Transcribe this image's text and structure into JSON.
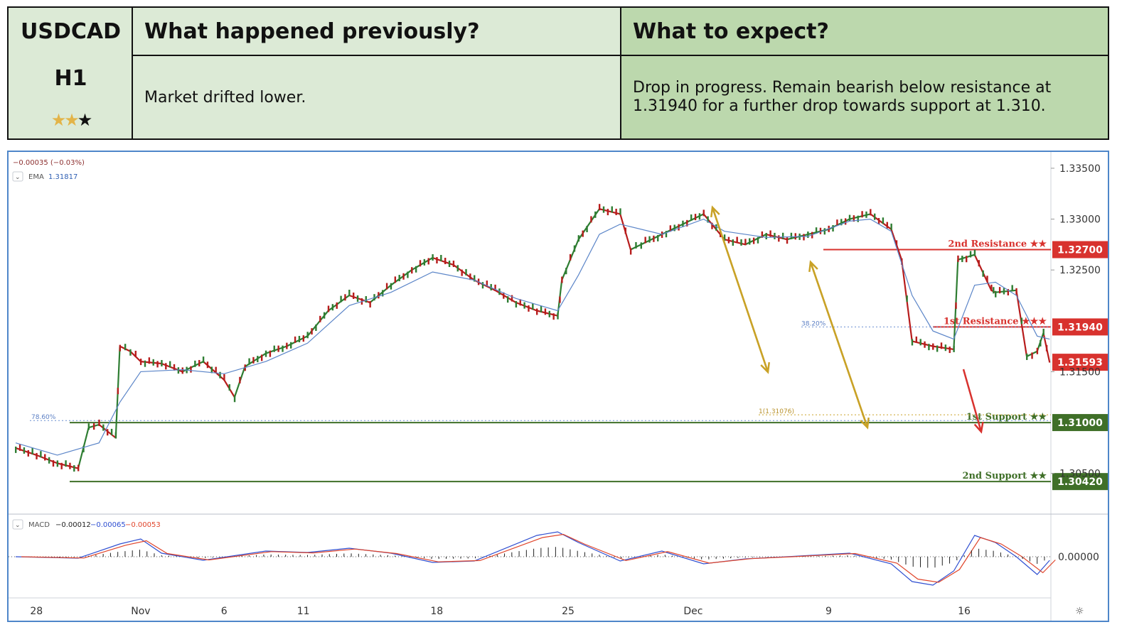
{
  "header": {
    "symbol": "USDCAD",
    "timeframe": "H1",
    "stars_filled": 2,
    "stars_total": 3,
    "prev_title": "What happened previously?",
    "prev_text": "Market drifted lower.",
    "exp_title": "What to expect?",
    "exp_text_line1": "Drop in progress. Remain bearish below resistance at",
    "exp_text_line2": "1.31940 for a further drop towards support at 1.310."
  },
  "colors": {
    "resistance": "#d8322e",
    "support": "#3f6f28",
    "ema": "#5b85c8",
    "candle_up": "#2e7d32",
    "candle_down": "#b71c1c",
    "arrow_gold": "#c9a227",
    "macd_line": "#2f4fd1",
    "signal_line": "#e0452b",
    "frame": "#4e86c9"
  },
  "chart_data": {
    "type": "line",
    "title": "",
    "change_readout": "−0.00035 (−0.03%)",
    "ema_label": "EMA",
    "ema_value": "1.31817",
    "y_ticks": [
      "1.33500",
      "1.33000",
      "1.32500",
      "1.31500",
      "1.30500"
    ],
    "x_ticks": [
      "28",
      "Nov",
      "6",
      "11",
      "18",
      "25",
      "Dec",
      "9",
      "16"
    ],
    "ylim": [
      1.301,
      1.3366
    ],
    "x_range_days": [
      0,
      50
    ],
    "current_price": "1.31593",
    "levels": [
      {
        "label": "2nd Resistance ★★",
        "price": 1.327,
        "tag": "1.32700",
        "kind": "resistance"
      },
      {
        "label": "1st Resistance ★★★",
        "price": 1.3194,
        "tag": "1.31940",
        "kind": "resistance"
      },
      {
        "label": "1st Support ★★",
        "price": 1.31,
        "tag": "1.31000",
        "kind": "support"
      },
      {
        "label": "2nd Support ★★",
        "price": 1.3042,
        "tag": "1.30420",
        "kind": "support"
      }
    ],
    "fib_labels": {
      "f786": "78.60%",
      "f382": "38.20%",
      "f1": "1(1.31076)"
    },
    "price_series": {
      "x": [
        0,
        1,
        2,
        3,
        4,
        5,
        6,
        7,
        8,
        9,
        10,
        11,
        12,
        13,
        14,
        15,
        16,
        17,
        18,
        19,
        20,
        21,
        22,
        23,
        24,
        25,
        26,
        27,
        28,
        29,
        30,
        31,
        32,
        33,
        34,
        35,
        36,
        37,
        38,
        39,
        40,
        41,
        42,
        43,
        44,
        45,
        46,
        47,
        48,
        49,
        50
      ],
      "y": []
    },
    "price_path": [
      [
        0,
        1.3075
      ],
      [
        1,
        1.3068
      ],
      [
        2,
        1.306
      ],
      [
        3,
        1.3055
      ],
      [
        3.5,
        1.3095
      ],
      [
        4,
        1.3098
      ],
      [
        4.8,
        1.3085
      ],
      [
        5.0,
        1.3175
      ],
      [
        5.5,
        1.317
      ],
      [
        6,
        1.316
      ],
      [
        7,
        1.3158
      ],
      [
        8,
        1.315
      ],
      [
        9,
        1.316
      ],
      [
        10,
        1.3142
      ],
      [
        10.5,
        1.3125
      ],
      [
        11,
        1.3155
      ],
      [
        12,
        1.3168
      ],
      [
        13,
        1.3175
      ],
      [
        14,
        1.3185
      ],
      [
        15,
        1.321
      ],
      [
        16,
        1.3225
      ],
      [
        17,
        1.3218
      ],
      [
        18,
        1.3235
      ],
      [
        19,
        1.325
      ],
      [
        20,
        1.3262
      ],
      [
        21,
        1.3255
      ],
      [
        22,
        1.324
      ],
      [
        23,
        1.323
      ],
      [
        24,
        1.3218
      ],
      [
        25,
        1.321
      ],
      [
        26,
        1.3205
      ],
      [
        26.2,
        1.324
      ],
      [
        27,
        1.328
      ],
      [
        28,
        1.331
      ],
      [
        29,
        1.3305
      ],
      [
        29.5,
        1.327
      ],
      [
        30,
        1.3275
      ],
      [
        31,
        1.3285
      ],
      [
        32,
        1.3295
      ],
      [
        33,
        1.3305
      ],
      [
        34,
        1.328
      ],
      [
        35,
        1.3275
      ],
      [
        36,
        1.3285
      ],
      [
        37,
        1.328
      ],
      [
        38,
        1.3285
      ],
      [
        39,
        1.329
      ],
      [
        40,
        1.33
      ],
      [
        41,
        1.3305
      ],
      [
        42,
        1.329
      ],
      [
        42.5,
        1.326
      ],
      [
        43,
        1.318
      ],
      [
        44,
        1.3175
      ],
      [
        45,
        1.3172
      ],
      [
        45.2,
        1.326
      ],
      [
        46,
        1.3265
      ],
      [
        46.8,
        1.323
      ],
      [
        47,
        1.3228
      ],
      [
        48,
        1.323
      ],
      [
        48.5,
        1.3165
      ],
      [
        49,
        1.317
      ],
      [
        49.3,
        1.3188
      ],
      [
        49.6,
        1.3159
      ]
    ],
    "ema_path": [
      [
        0,
        1.308
      ],
      [
        2,
        1.3068
      ],
      [
        4,
        1.308
      ],
      [
        5,
        1.312
      ],
      [
        6,
        1.315
      ],
      [
        8,
        1.3152
      ],
      [
        10,
        1.3148
      ],
      [
        12,
        1.316
      ],
      [
        14,
        1.3178
      ],
      [
        16,
        1.3215
      ],
      [
        18,
        1.3228
      ],
      [
        20,
        1.3248
      ],
      [
        22,
        1.324
      ],
      [
        24,
        1.3222
      ],
      [
        26,
        1.321
      ],
      [
        27,
        1.3245
      ],
      [
        28,
        1.3285
      ],
      [
        29,
        1.3295
      ],
      [
        31,
        1.3285
      ],
      [
        33,
        1.33
      ],
      [
        34,
        1.3288
      ],
      [
        36,
        1.3282
      ],
      [
        38,
        1.3283
      ],
      [
        40,
        1.3298
      ],
      [
        41,
        1.33
      ],
      [
        42,
        1.3288
      ],
      [
        43,
        1.3225
      ],
      [
        44,
        1.319
      ],
      [
        45,
        1.3182
      ],
      [
        46,
        1.3235
      ],
      [
        47,
        1.3238
      ],
      [
        48,
        1.3225
      ],
      [
        49,
        1.3185
      ],
      [
        49.6,
        1.3182
      ]
    ],
    "macd": {
      "label": "MACD",
      "v1": "−0.00012",
      "v2": "−0.00065",
      "v3": "−0.00053",
      "zero_tick": "0.00000"
    }
  }
}
